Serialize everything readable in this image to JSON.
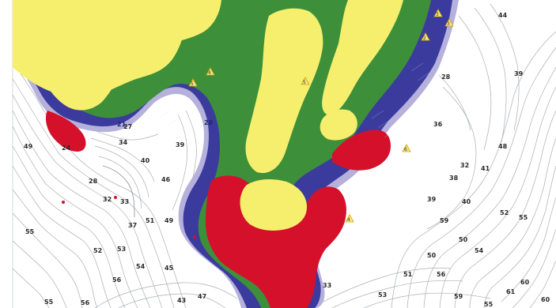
{
  "colors": {
    "land": "#f6ef6e",
    "very_shallow": "#b5b1dc",
    "shallow_blue": "#3b3b9e",
    "mid_green": "#3e8f3a",
    "deep_red": "#d5102b",
    "background": "#ffffff",
    "contour": "#a9aeb3"
  },
  "depth_labels": [
    {
      "text": "49"
    },
    {
      "text": "24"
    },
    {
      "text": "27"
    },
    {
      "text": "34"
    },
    {
      "text": "39"
    },
    {
      "text": "40"
    },
    {
      "text": "46"
    },
    {
      "text": "28"
    },
    {
      "text": "32"
    },
    {
      "text": "33"
    },
    {
      "text": "37"
    },
    {
      "text": "51"
    },
    {
      "text": "49"
    },
    {
      "text": "55"
    },
    {
      "text": "52"
    },
    {
      "text": "53"
    },
    {
      "text": "54"
    },
    {
      "text": "56"
    },
    {
      "text": "55"
    },
    {
      "text": "56"
    },
    {
      "text": "43"
    },
    {
      "text": "47"
    },
    {
      "text": "45"
    },
    {
      "text": "44"
    },
    {
      "text": "39"
    },
    {
      "text": "28"
    },
    {
      "text": "36"
    },
    {
      "text": "48"
    },
    {
      "text": "41"
    },
    {
      "text": "38"
    },
    {
      "text": "32"
    },
    {
      "text": "39"
    },
    {
      "text": "40"
    },
    {
      "text": "52"
    },
    {
      "text": "55"
    },
    {
      "text": "50"
    },
    {
      "text": "59"
    },
    {
      "text": "50"
    },
    {
      "text": "54"
    },
    {
      "text": "51"
    },
    {
      "text": "56"
    },
    {
      "text": "53"
    },
    {
      "text": "59"
    },
    {
      "text": "60"
    },
    {
      "text": "61"
    },
    {
      "text": "60"
    },
    {
      "text": "55"
    },
    {
      "text": "28"
    },
    {
      "text": "21"
    },
    {
      "text": "33"
    }
  ],
  "rock_markers": [
    {
      "text": "5"
    },
    {
      "text": "4"
    },
    {
      "text": "3"
    },
    {
      "text": "2"
    },
    {
      "text": "6"
    },
    {
      "text": "4"
    },
    {
      "text": "3"
    },
    {
      "text": "5"
    }
  ]
}
